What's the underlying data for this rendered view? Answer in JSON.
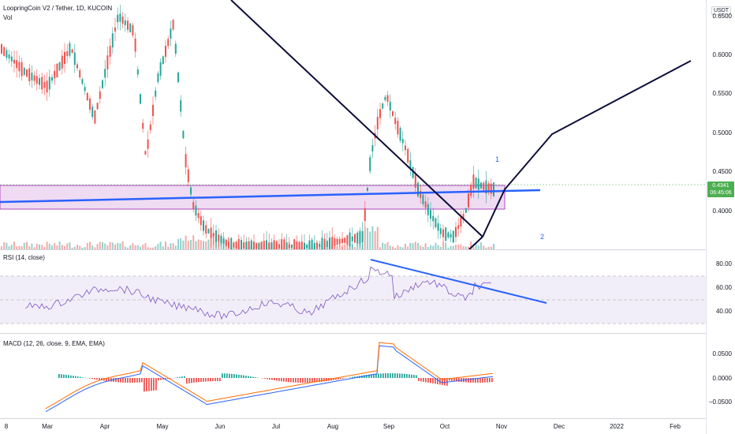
{
  "header": {
    "title": "LoopringCoin V2 / Tether, 1D, KUCOIN",
    "vol_label": "Vol"
  },
  "price_axis": {
    "currency": "USDT",
    "ticks": [
      "0.6500",
      "0.6000",
      "0.5500",
      "0.5000",
      "0.4500",
      "0.4000"
    ],
    "last_price": "0.4341",
    "countdown": "06:45:06"
  },
  "annotations": {
    "label_1": "1",
    "label_2": "2"
  },
  "rsi": {
    "legend": "RSI (14, close)",
    "ticks": [
      "80.00",
      "60.00",
      "40.00"
    ]
  },
  "macd": {
    "legend": "MACD (12, 26, close, 9, EMA, EMA)",
    "ticks": [
      "0.0500",
      "0.0000",
      "−0.0500"
    ]
  },
  "time_axis": {
    "labels": [
      "8",
      "Mar",
      "Apr",
      "May",
      "Jun",
      "Jul",
      "Aug",
      "Sep",
      "Oct",
      "Nov",
      "Dec",
      "2022",
      "Feb"
    ]
  },
  "colors": {
    "up": "#26a69a",
    "down": "#ef5350",
    "trendline": "#2962ff",
    "zone": "#e1bee7",
    "rsi_line": "#7e57c2",
    "macd_line": "#2962ff",
    "signal_line": "#ff6d00",
    "price_tag": "#4caf50"
  }
}
